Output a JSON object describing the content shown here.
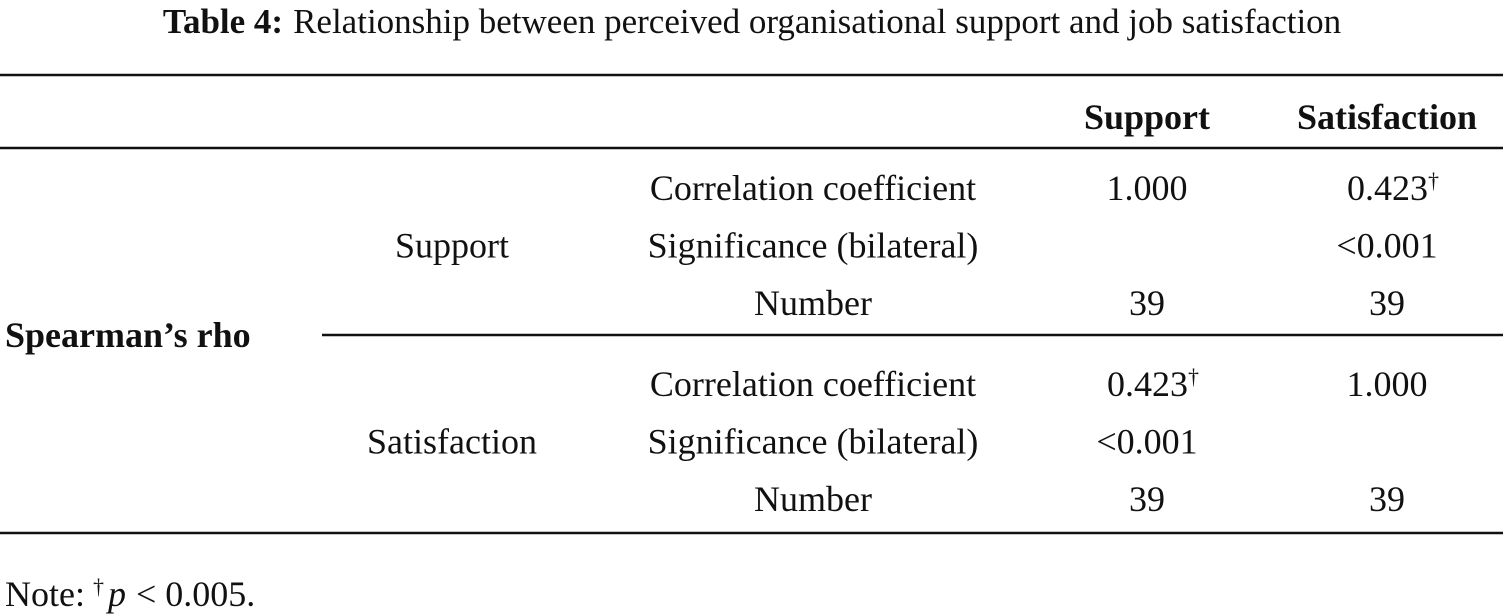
{
  "caption": {
    "label": "Table 4:",
    "text": "Relationship between perceived organisational support and job satisfaction"
  },
  "table": {
    "header": [
      "Support",
      "Satisfaction"
    ],
    "row_group_label": "Spearman’s rho",
    "groups": [
      {
        "name": "Support",
        "rows": [
          {
            "label": "Correlation coefficient",
            "cells": [
              "1.000",
              {
                "text": "0.423",
                "sup": "†"
              }
            ]
          },
          {
            "label": "Significance (bilateral)",
            "cells": [
              null,
              "<0.001"
            ]
          },
          {
            "label": "Number",
            "cells": [
              "39",
              "39"
            ]
          }
        ]
      },
      {
        "name": "Satisfaction",
        "rows": [
          {
            "label": "Correlation coefficient",
            "cells": [
              {
                "text": "0.423",
                "sup": "†"
              },
              "1.000"
            ]
          },
          {
            "label": "Significance (bilateral)",
            "cells": [
              "<0.001",
              null
            ]
          },
          {
            "label": "Number",
            "cells": [
              "39",
              "39"
            ]
          }
        ]
      }
    ]
  },
  "note": {
    "prefix": "Note:",
    "mark": "†",
    "variable": "p",
    "text": "< 0.005."
  }
}
